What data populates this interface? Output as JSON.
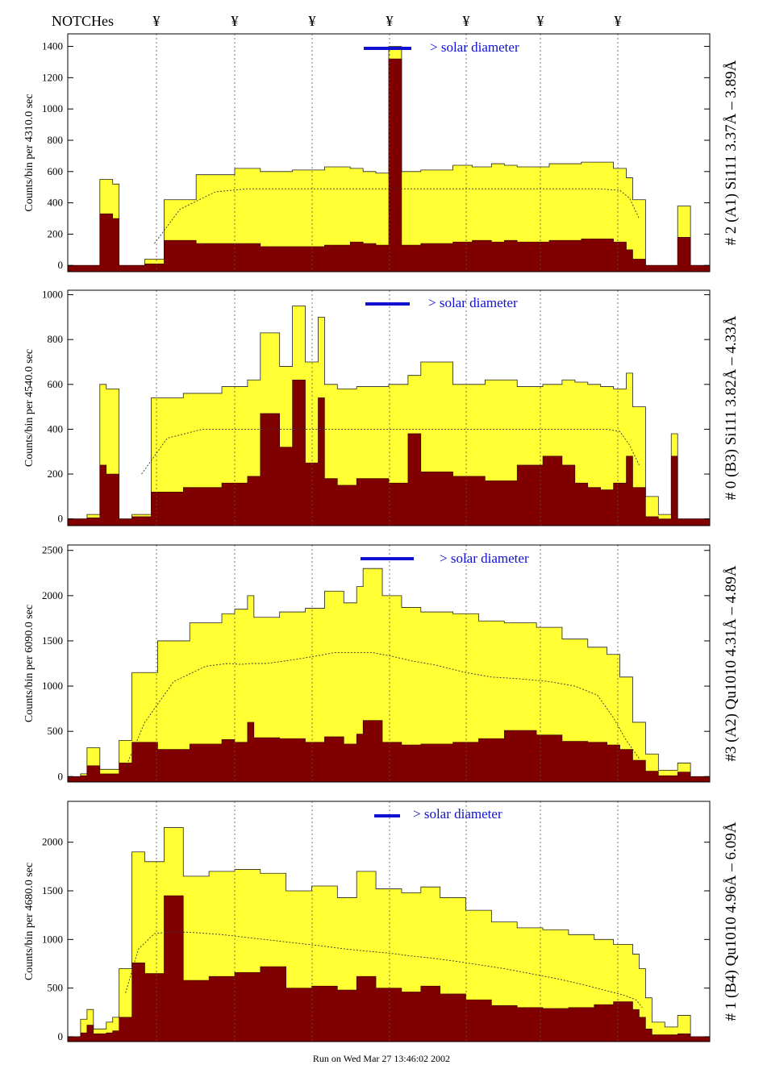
{
  "notches_label": "NOTCHes",
  "notch_marker": "¥",
  "footer": "Run on Wed Mar 27 13:46:02 2002",
  "colors": {
    "total_fill": "#ffff33",
    "line_fill": "#800000",
    "marker": "#1010d0",
    "frame": "#000000"
  },
  "chart_data": [
    {
      "type": "area",
      "ylabel": "Counts/bin per   4310.0 sec",
      "right_label": "# 2 (A1) Si111  3.37Å – 3.89Å",
      "annotation": "> solar diameter",
      "ylim": [
        -40,
        1480
      ],
      "yticks": [
        0,
        200,
        400,
        600,
        800,
        1000,
        1200,
        1400
      ],
      "x": [
        0,
        3,
        5,
        7,
        8,
        10,
        12,
        15,
        20,
        26,
        30,
        35,
        40,
        44,
        46,
        48,
        50,
        52,
        55,
        60,
        63,
        66,
        68,
        70,
        75,
        80,
        85,
        87,
        88,
        90,
        93,
        95,
        97,
        100
      ],
      "series": [
        {
          "values": [
            0,
            0,
            550,
            520,
            0,
            0,
            40,
            420,
            580,
            620,
            600,
            610,
            630,
            620,
            600,
            590,
            1400,
            600,
            610,
            640,
            630,
            650,
            640,
            630,
            650,
            660,
            620,
            560,
            420,
            0,
            0,
            380,
            0,
            0
          ]
        },
        {
          "values": [
            0,
            0,
            330,
            300,
            0,
            0,
            10,
            160,
            140,
            140,
            120,
            120,
            130,
            150,
            140,
            130,
            1320,
            130,
            140,
            150,
            160,
            150,
            160,
            150,
            160,
            170,
            150,
            100,
            40,
            0,
            0,
            180,
            0,
            0
          ]
        },
        {
          "values": [
            null,
            null,
            null,
            null,
            null,
            null,
            140,
            360,
            470,
            490,
            490,
            490,
            490,
            490,
            490,
            490,
            490,
            490,
            490,
            490,
            490,
            490,
            490,
            490,
            490,
            490,
            480,
            430,
            300,
            null,
            null,
            null,
            null,
            null
          ]
        }
      ]
    },
    {
      "type": "area",
      "ylabel": "Counts/bin per   4540.0 sec",
      "right_label": "# 0 (B3) Si111  3.82Å – 4.33Å",
      "annotation": "> solar diameter",
      "ylim": [
        -30,
        1020
      ],
      "yticks": [
        0,
        200,
        400,
        600,
        800,
        1000
      ],
      "x": [
        0,
        2,
        3,
        5,
        6,
        8,
        10,
        13,
        18,
        24,
        28,
        30,
        33,
        35,
        37,
        39,
        40,
        42,
        45,
        50,
        53,
        55,
        60,
        65,
        70,
        74,
        77,
        79,
        81,
        83,
        85,
        87,
        88,
        90,
        92,
        94,
        95,
        100
      ],
      "series": [
        {
          "values": [
            0,
            0,
            20,
            600,
            580,
            0,
            20,
            540,
            560,
            590,
            620,
            830,
            680,
            950,
            700,
            900,
            600,
            580,
            590,
            600,
            640,
            700,
            600,
            620,
            590,
            600,
            620,
            610,
            600,
            590,
            580,
            650,
            500,
            100,
            20,
            380,
            0,
            0
          ]
        },
        {
          "values": [
            0,
            0,
            5,
            240,
            200,
            0,
            10,
            120,
            140,
            160,
            190,
            470,
            320,
            620,
            250,
            540,
            180,
            150,
            180,
            160,
            380,
            210,
            190,
            170,
            240,
            280,
            240,
            160,
            140,
            130,
            160,
            280,
            140,
            10,
            0,
            280,
            0,
            0
          ]
        },
        {
          "values": [
            null,
            null,
            null,
            null,
            null,
            null,
            200,
            360,
            400,
            400,
            400,
            400,
            400,
            400,
            400,
            400,
            400,
            400,
            400,
            400,
            400,
            400,
            400,
            400,
            400,
            400,
            400,
            400,
            400,
            400,
            390,
            330,
            240,
            null,
            null,
            null,
            null,
            null
          ]
        }
      ]
    },
    {
      "type": "area",
      "ylabel": "Counts/bin per   6090.0 sec",
      "right_label": "#3 (A2) Qu1010  4.31Å – 4.89Å",
      "annotation": "> solar diameter",
      "ylim": [
        -60,
        2560
      ],
      "yticks": [
        0,
        500,
        1000,
        1500,
        2000,
        2500
      ],
      "x": [
        0,
        1,
        2,
        3,
        5,
        8,
        10,
        14,
        19,
        24,
        26,
        28,
        29,
        33,
        37,
        40,
        43,
        45,
        46,
        49,
        52,
        55,
        60,
        64,
        68,
        73,
        77,
        81,
        84,
        86,
        88,
        90,
        92,
        95,
        97,
        100
      ],
      "series": [
        {
          "values": [
            0,
            0,
            30,
            320,
            80,
            400,
            1150,
            1500,
            1700,
            1800,
            1850,
            2000,
            1760,
            1820,
            1860,
            2050,
            1920,
            2100,
            2300,
            2000,
            1870,
            1820,
            1800,
            1720,
            1700,
            1650,
            1520,
            1430,
            1350,
            1100,
            600,
            250,
            70,
            150,
            0,
            0
          ]
        },
        {
          "values": [
            0,
            0,
            10,
            120,
            30,
            150,
            380,
            300,
            360,
            410,
            380,
            600,
            430,
            420,
            380,
            440,
            360,
            470,
            620,
            380,
            350,
            360,
            380,
            420,
            510,
            460,
            390,
            380,
            350,
            300,
            180,
            60,
            10,
            50,
            0,
            0
          ]
        },
        {
          "values": [
            null,
            null,
            null,
            null,
            null,
            100,
            600,
            1050,
            1220,
            1250,
            1240,
            1250,
            1250,
            1290,
            1330,
            1370,
            1370,
            1370,
            1370,
            1330,
            1280,
            1230,
            1150,
            1100,
            1080,
            1050,
            1000,
            900,
            650,
            400,
            200,
            null,
            null,
            null,
            null,
            null
          ]
        }
      ]
    },
    {
      "type": "area",
      "ylabel": "Counts/bin per   4680.0 sec",
      "right_label": "# 1 (B4) Qu1010 4.96Å – 6.09Å",
      "annotation": "> solar diameter",
      "ylim": [
        -50,
        2420
      ],
      "yticks": [
        0,
        500,
        1000,
        1500,
        2000
      ],
      "x": [
        0,
        1,
        2,
        3,
        4,
        5,
        6,
        7,
        8,
        10,
        12,
        15,
        18,
        22,
        26,
        30,
        34,
        38,
        42,
        45,
        48,
        52,
        55,
        58,
        62,
        66,
        70,
        74,
        78,
        82,
        85,
        88,
        89,
        90,
        91,
        93,
        95,
        97,
        100
      ],
      "series": [
        {
          "values": [
            0,
            0,
            180,
            280,
            80,
            80,
            150,
            200,
            700,
            1900,
            1800,
            2150,
            1650,
            1700,
            1720,
            1680,
            1500,
            1550,
            1430,
            1700,
            1520,
            1480,
            1540,
            1430,
            1300,
            1180,
            1120,
            1100,
            1050,
            1000,
            950,
            850,
            700,
            400,
            150,
            100,
            220,
            0,
            0
          ]
        },
        {
          "values": [
            0,
            0,
            40,
            120,
            30,
            30,
            40,
            60,
            200,
            760,
            650,
            1450,
            580,
            620,
            660,
            720,
            500,
            520,
            480,
            620,
            500,
            460,
            520,
            440,
            380,
            320,
            300,
            290,
            300,
            330,
            360,
            280,
            200,
            80,
            20,
            20,
            30,
            0,
            0
          ]
        },
        {
          "values": [
            null,
            null,
            null,
            null,
            null,
            null,
            null,
            null,
            450,
            900,
            1060,
            1080,
            1070,
            1050,
            1020,
            990,
            960,
            930,
            900,
            880,
            860,
            830,
            810,
            780,
            740,
            700,
            650,
            600,
            540,
            480,
            430,
            380,
            300,
            null,
            null,
            null,
            null,
            null,
            null
          ]
        }
      ]
    }
  ]
}
